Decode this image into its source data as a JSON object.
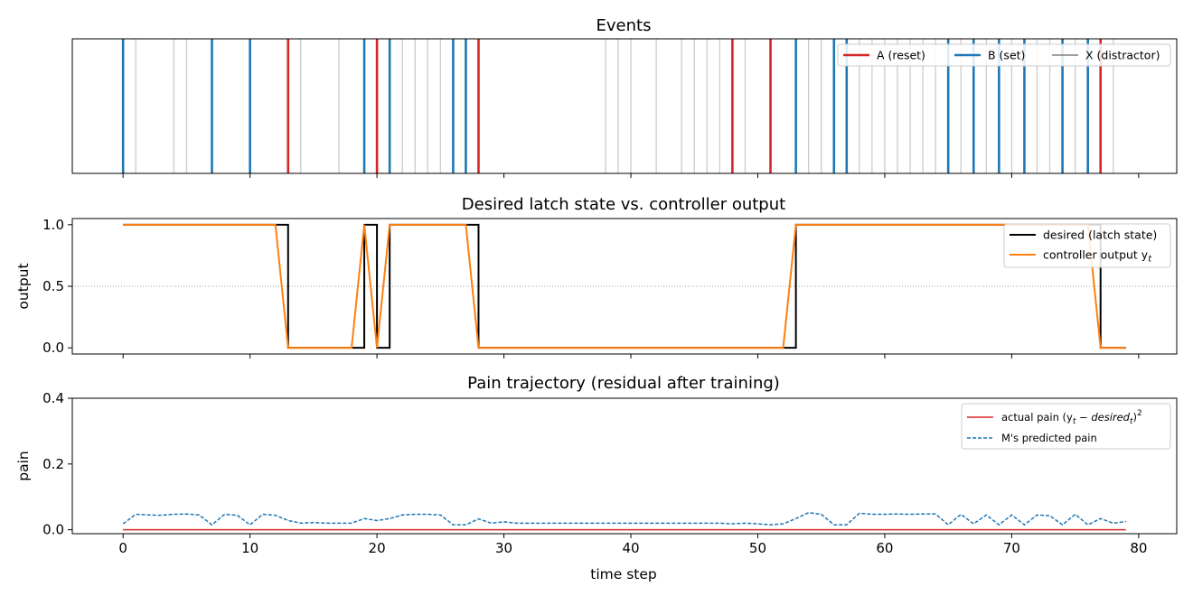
{
  "chart_data": [
    {
      "type": "event_raster",
      "title": "Events",
      "xlim": [
        -4,
        83
      ],
      "series": [
        {
          "name": "A (reset)",
          "color": "#d62728",
          "x": [
            13,
            20,
            28,
            48,
            51,
            77
          ]
        },
        {
          "name": "B (set)",
          "color": "#1f77b4",
          "x": [
            0,
            7,
            10,
            19,
            21,
            26,
            27,
            53,
            56,
            57,
            65,
            67,
            69,
            71,
            74,
            76
          ]
        },
        {
          "name": "X (distractor)",
          "color": "#808080",
          "x": [
            1,
            4,
            5,
            14,
            17,
            22,
            23,
            24,
            25,
            38,
            39,
            40,
            42,
            44,
            45,
            46,
            47,
            49,
            54,
            55,
            58,
            59,
            60,
            61,
            62,
            63,
            64,
            66,
            68,
            70,
            72,
            73,
            75,
            78
          ]
        }
      ],
      "legend": "top-right"
    },
    {
      "type": "line",
      "title": "Desired latch state vs. controller output",
      "ylabel": "output",
      "xlim": [
        -4,
        83
      ],
      "ylim": [
        -0.05,
        1.05
      ],
      "yticks": [
        "0.0",
        "0.5",
        "1.0"
      ],
      "reference_line": 0.5,
      "series": [
        {
          "name": "desired (latch state)",
          "color": "#000000",
          "step": true,
          "x": [
            0,
            13,
            19,
            20,
            21,
            28,
            53,
            77,
            79
          ],
          "y": [
            1,
            0,
            1,
            0,
            1,
            0,
            1,
            0,
            0
          ]
        },
        {
          "name": "controller output  y",
          "name_subscript": "t",
          "color": "#ff7f0e",
          "x": [
            0,
            12,
            13,
            18,
            19,
            20,
            21,
            27,
            28,
            52,
            53,
            76,
            77,
            79
          ],
          "y": [
            1,
            1,
            0,
            0,
            1,
            0,
            1,
            1,
            0,
            0,
            1,
            1,
            0,
            0
          ]
        }
      ],
      "legend": "top-right"
    },
    {
      "type": "line",
      "title": "Pain trajectory  (residual after training)",
      "xlabel": "time step",
      "ylabel": "pain",
      "xlim": [
        -4,
        83
      ],
      "ylim": [
        -0.012,
        0.4
      ],
      "xticks": [
        "0",
        "10",
        "20",
        "30",
        "40",
        "50",
        "60",
        "70",
        "80"
      ],
      "yticks": [
        "0.0",
        "0.2",
        "0.4"
      ],
      "series": [
        {
          "name": "actual pain  (y",
          "name_subscript": "t",
          "name_middle": " − desired",
          "name_subscript2": "t",
          "name_end": ")",
          "name_superscript": "2",
          "color": "#d62728",
          "style": "solid",
          "x": [
            0,
            79
          ],
          "y": [
            0.0,
            0.0
          ]
        },
        {
          "name": "M's predicted pain",
          "color": "#1f77b4",
          "style": "dashed",
          "x": [
            0,
            1,
            2,
            3,
            4,
            5,
            6,
            7,
            8,
            9,
            10,
            11,
            12,
            13,
            14,
            15,
            16,
            17,
            18,
            19,
            20,
            21,
            22,
            23,
            24,
            25,
            26,
            27,
            28,
            29,
            30,
            31,
            32,
            33,
            34,
            35,
            36,
            37,
            38,
            39,
            40,
            41,
            42,
            43,
            44,
            45,
            46,
            47,
            48,
            49,
            50,
            51,
            52,
            53,
            54,
            55,
            56,
            57,
            58,
            59,
            60,
            61,
            62,
            63,
            64,
            65,
            66,
            67,
            68,
            69,
            70,
            71,
            72,
            73,
            74,
            75,
            76,
            77,
            78,
            79
          ],
          "y": [
            0.018,
            0.047,
            0.045,
            0.044,
            0.047,
            0.048,
            0.045,
            0.015,
            0.047,
            0.044,
            0.015,
            0.047,
            0.044,
            0.028,
            0.02,
            0.022,
            0.02,
            0.02,
            0.02,
            0.034,
            0.028,
            0.034,
            0.045,
            0.047,
            0.047,
            0.045,
            0.015,
            0.015,
            0.033,
            0.02,
            0.024,
            0.02,
            0.02,
            0.02,
            0.02,
            0.02,
            0.02,
            0.02,
            0.02,
            0.02,
            0.02,
            0.02,
            0.02,
            0.02,
            0.02,
            0.02,
            0.02,
            0.02,
            0.018,
            0.02,
            0.018,
            0.015,
            0.018,
            0.034,
            0.052,
            0.047,
            0.015,
            0.015,
            0.05,
            0.047,
            0.047,
            0.048,
            0.047,
            0.048,
            0.048,
            0.015,
            0.047,
            0.018,
            0.045,
            0.015,
            0.045,
            0.015,
            0.045,
            0.043,
            0.015,
            0.047,
            0.015,
            0.034,
            0.02,
            0.025
          ]
        }
      ],
      "legend": "top-right"
    }
  ]
}
